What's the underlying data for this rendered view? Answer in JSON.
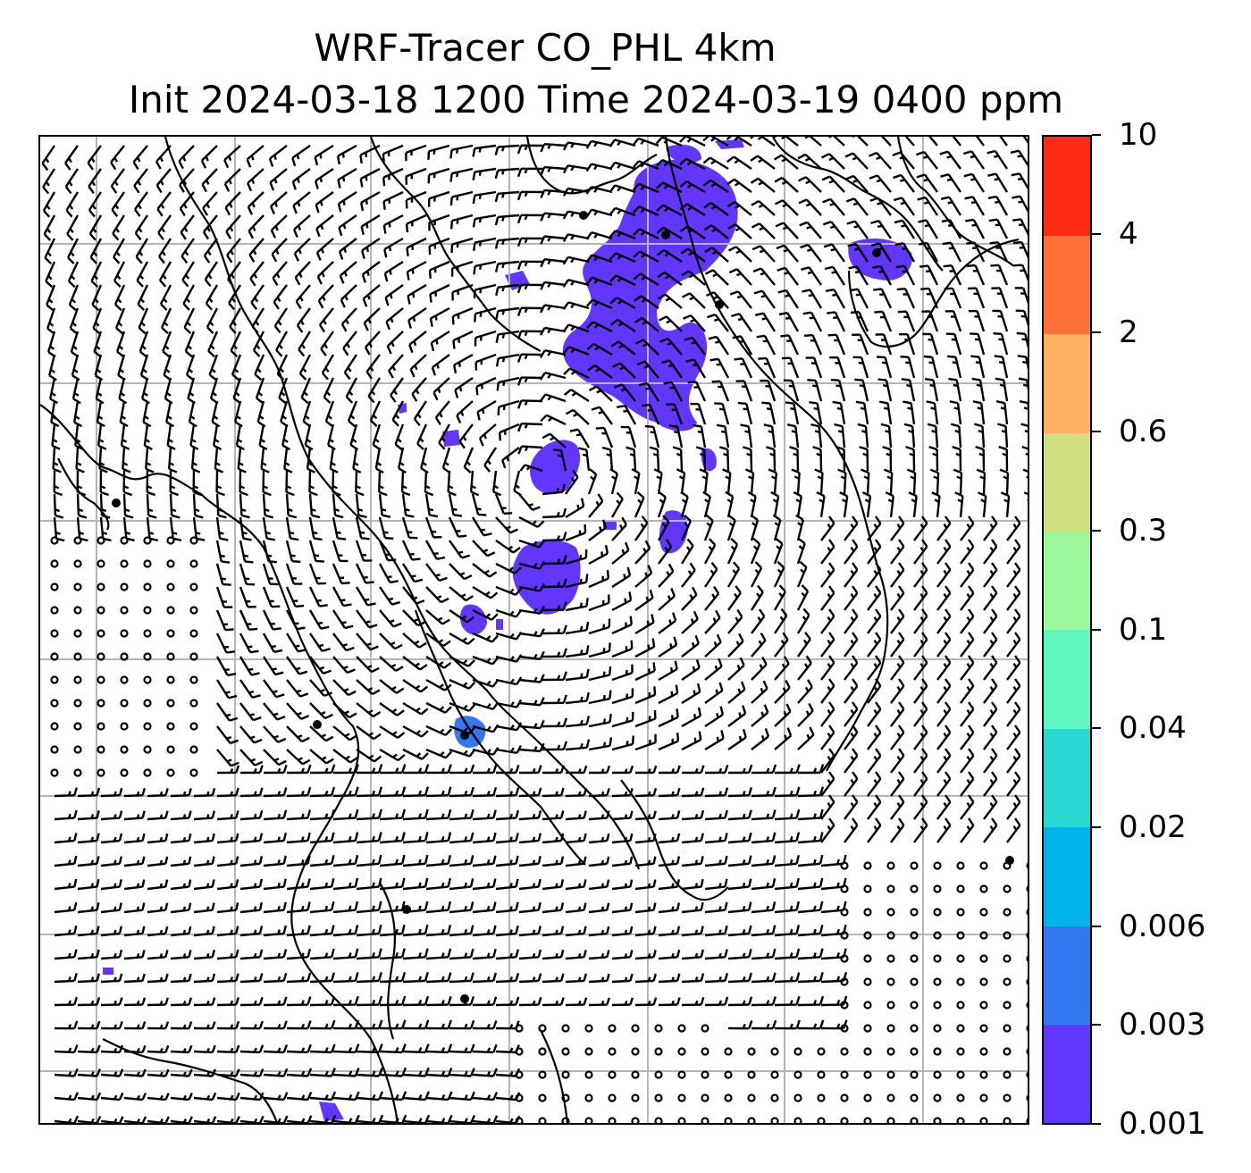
{
  "title": {
    "line1": "WRF-Tracer CO_PHL 4km",
    "line2": "Init 2024-03-18 1200 Time 2024-03-19 0400 ppm"
  },
  "map": {
    "field": "CO_PHL tracer concentration",
    "units": "ppm",
    "grid_lines": true,
    "overlays": [
      "coastline",
      "wind-barbs"
    ]
  },
  "colorbar": {
    "levels": [
      "10",
      "4",
      "2",
      "0.6",
      "0.3",
      "0.1",
      "0.04",
      "0.02",
      "0.006",
      "0.003",
      "0.001"
    ],
    "colors_bottom_to_top": [
      "#6236ff",
      "#3478f0",
      "#00b4ea",
      "#2ad9d2",
      "#5ff6bf",
      "#9bf99c",
      "#d1df80",
      "#fdb062",
      "#ff7038",
      "#ff2a12"
    ]
  }
}
